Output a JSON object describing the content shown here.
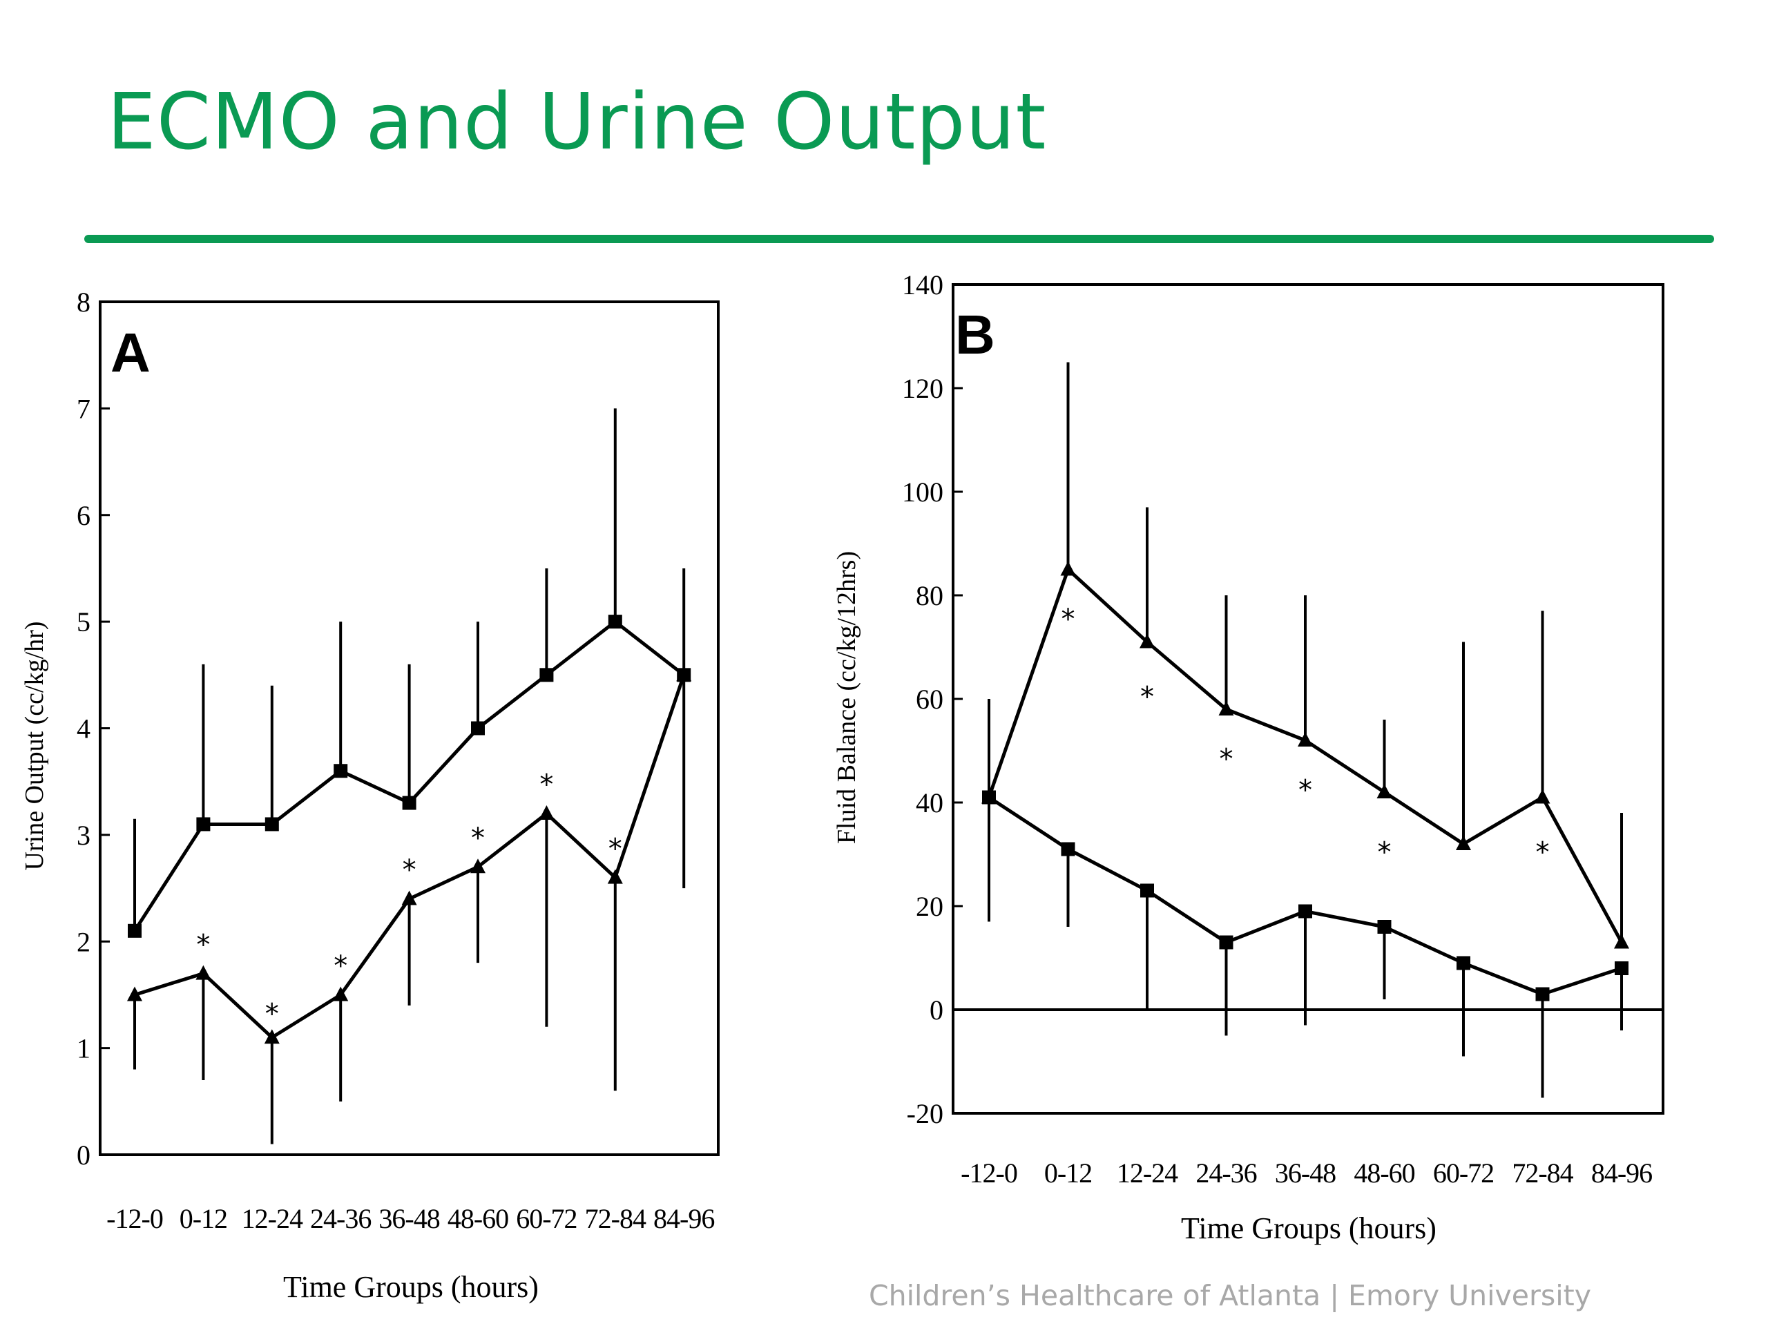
{
  "slide": {
    "title": "ECMO and Urine Output",
    "footer": "Children’s Healthcare of Atlanta | Emory University",
    "accent_color": "#0a9a53"
  },
  "chart_data": [
    {
      "type": "line",
      "panel_label": "A",
      "xlabel": "Time Groups (hours)",
      "ylabel": "Urine Output (cc/kg/hr)",
      "ylim": [
        0,
        8
      ],
      "yticks": [
        0,
        1,
        2,
        3,
        4,
        5,
        6,
        7,
        8
      ],
      "categories": [
        "-12-0",
        "0-12",
        "12-24",
        "24-36",
        "36-48",
        "48-60",
        "60-72",
        "72-84",
        "84-96"
      ],
      "series": [
        {
          "marker": "square",
          "values": [
            2.1,
            3.1,
            3.1,
            3.6,
            3.3,
            4.0,
            4.5,
            5.0,
            4.5
          ],
          "error_lo": [
            2.1,
            3.1,
            3.1,
            3.6,
            3.3,
            4.0,
            4.5,
            5.0,
            2.5
          ],
          "error_hi": [
            3.15,
            4.6,
            4.4,
            5.0,
            4.6,
            5.0,
            5.5,
            7.0,
            5.5
          ]
        },
        {
          "marker": "triangle",
          "values": [
            1.5,
            1.7,
            1.1,
            1.5,
            2.4,
            2.7,
            3.2,
            2.6,
            4.5
          ],
          "error_lo": [
            0.8,
            0.7,
            0.1,
            0.5,
            1.4,
            1.8,
            1.2,
            0.6,
            4.5
          ],
          "error_hi": [
            1.5,
            1.7,
            1.1,
            1.5,
            2.4,
            2.7,
            3.2,
            2.6,
            4.5
          ]
        }
      ],
      "significance": [
        {
          "x": "0-12",
          "y": 2.0
        },
        {
          "x": "12-24",
          "y": 1.35
        },
        {
          "x": "24-36",
          "y": 1.8
        },
        {
          "x": "36-48",
          "y": 2.7
        },
        {
          "x": "48-60",
          "y": 3.0
        },
        {
          "x": "60-72",
          "y": 3.5
        },
        {
          "x": "72-84",
          "y": 2.9
        }
      ],
      "significance_symbol": "*"
    },
    {
      "type": "line",
      "panel_label": "B",
      "xlabel": "Time Groups (hours)",
      "ylabel": "Fluid Balance (cc/kg/12hrs)",
      "ylim": [
        -20,
        140
      ],
      "yticks": [
        -20,
        0,
        20,
        40,
        60,
        80,
        100,
        120,
        140
      ],
      "categories": [
        "-12-0",
        "0-12",
        "12-24",
        "24-36",
        "36-48",
        "48-60",
        "60-72",
        "72-84",
        "84-96"
      ],
      "series": [
        {
          "marker": "triangle",
          "values": [
            41,
            85,
            71,
            58,
            52,
            42,
            32,
            41,
            13
          ],
          "error_lo": [
            41,
            85,
            71,
            58,
            52,
            42,
            32,
            41,
            13
          ],
          "error_hi": [
            60,
            125,
            97,
            80,
            80,
            56,
            71,
            77,
            38
          ]
        },
        {
          "marker": "square",
          "values": [
            41,
            31,
            23,
            13,
            19,
            16,
            9,
            3,
            8
          ],
          "error_lo": [
            17,
            16,
            0,
            -5,
            -3,
            2,
            -9,
            -17,
            -4
          ],
          "error_hi": [
            41,
            31,
            23,
            13,
            19,
            16,
            9,
            3,
            8
          ]
        }
      ],
      "significance": [
        {
          "x": "0-12",
          "y": 76
        },
        {
          "x": "12-24",
          "y": 61
        },
        {
          "x": "24-36",
          "y": 49
        },
        {
          "x": "36-48",
          "y": 43
        },
        {
          "x": "48-60",
          "y": 31
        },
        {
          "x": "72-84",
          "y": 31
        }
      ],
      "significance_symbol": "*"
    }
  ]
}
